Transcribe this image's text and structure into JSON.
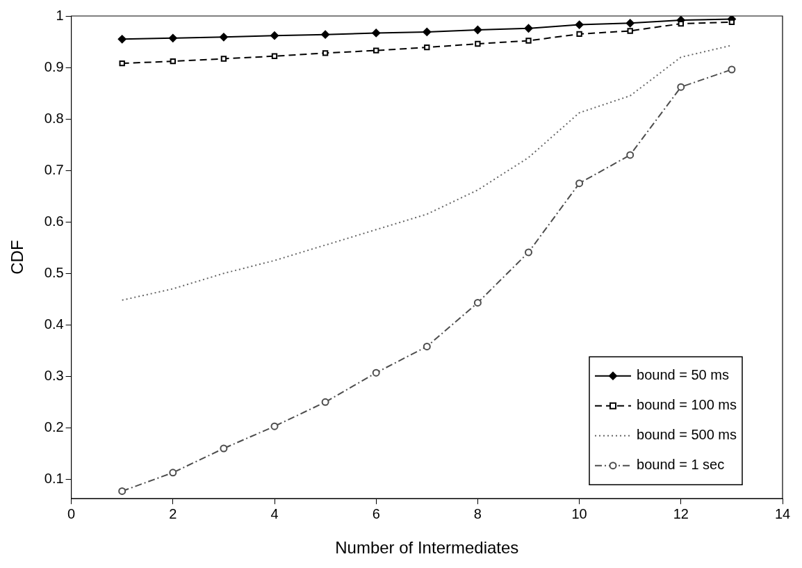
{
  "chart_data": {
    "type": "line",
    "xlabel": "Number of Intermediates",
    "ylabel": "CDF",
    "x": [
      1,
      2,
      3,
      4,
      5,
      6,
      7,
      8,
      9,
      10,
      11,
      12,
      13
    ],
    "xlim": [
      0,
      14
    ],
    "xticks": [
      0,
      2,
      4,
      6,
      8,
      10,
      12,
      14
    ],
    "ylim": [
      0.0625,
      1
    ],
    "yticks": [
      0.1,
      0.2,
      0.3,
      0.4,
      0.5,
      0.6,
      0.7,
      0.8,
      0.9,
      1
    ],
    "grid": false,
    "legend": "bottom right",
    "series": [
      {
        "name": "bound = 50 ms",
        "color": "#000000",
        "marker": "diamond",
        "line_style": "solid",
        "values": [
          0.955,
          0.957,
          0.959,
          0.962,
          0.964,
          0.967,
          0.969,
          0.973,
          0.976,
          0.983,
          0.986,
          0.992,
          0.994
        ]
      },
      {
        "name": "bound = 100 ms",
        "color": "#000000",
        "marker": "square",
        "line_style": "dashed",
        "values": [
          0.908,
          0.912,
          0.917,
          0.922,
          0.928,
          0.933,
          0.939,
          0.946,
          0.952,
          0.965,
          0.971,
          0.985,
          0.988
        ]
      },
      {
        "name": "bound = 500 ms",
        "color": "#666666",
        "marker": "none",
        "line_style": "dotted",
        "values": [
          0.448,
          0.47,
          0.5,
          0.525,
          0.555,
          0.585,
          0.615,
          0.662,
          0.725,
          0.812,
          0.845,
          0.92,
          0.943
        ]
      },
      {
        "name": "bound = 1 sec",
        "color": "#4d4d4d",
        "marker": "circle",
        "line_style": "dashdot",
        "values": [
          0.077,
          0.113,
          0.16,
          0.203,
          0.25,
          0.307,
          0.358,
          0.443,
          0.541,
          0.675,
          0.73,
          0.862,
          0.896
        ]
      }
    ]
  }
}
